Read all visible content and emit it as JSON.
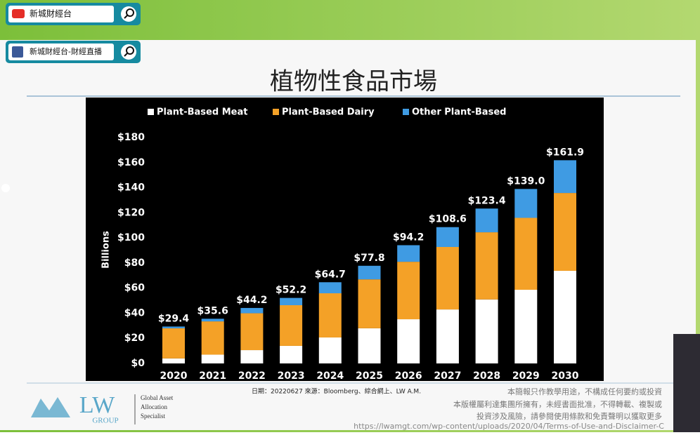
{
  "overlay": {
    "youtube": "新城財經台",
    "facebook": "新城財經台-財經直播"
  },
  "chart_data": {
    "type": "stacked_bar",
    "title": "植物性食品市場",
    "y_label": "Billions",
    "categories": [
      "2020",
      "2021",
      "2022",
      "2023",
      "2024",
      "2025",
      "2026",
      "2027",
      "2028",
      "2029",
      "2030"
    ],
    "series": [
      {
        "name": "Plant-Based Meat",
        "color": "#ffffff",
        "values": [
          4,
          7,
          10.6,
          14,
          20.7,
          28,
          35.2,
          43,
          51,
          58.7,
          73.8
        ]
      },
      {
        "name": "Plant-Based Dairy",
        "color": "#f4a127",
        "values": [
          24,
          26.5,
          29.4,
          32.4,
          35.2,
          39,
          45.8,
          49.8,
          53.5,
          57.3,
          62
        ]
      },
      {
        "name": "Other Plant-Based",
        "color": "#3f9be3",
        "values": [
          1.4,
          2.1,
          4.2,
          5.8,
          8.8,
          10.8,
          13.2,
          15.8,
          18.9,
          23,
          26.1
        ]
      }
    ],
    "totals": {
      "values": [
        29.4,
        35.6,
        44.2,
        52.2,
        64.7,
        77.8,
        94.2,
        108.6,
        123.4,
        139.0,
        161.9
      ],
      "value_labels": [
        "$29.4",
        "$35.6",
        "$44.2",
        "$52.2",
        "$64.7",
        "$77.8",
        "$94.2",
        "$108.6",
        "$123.4",
        "$139.0",
        "$161.9"
      ]
    },
    "ylim": [
      0,
      180
    ],
    "yticks": [
      {
        "value": 0,
        "label": "$0"
      },
      {
        "value": 20,
        "label": "$20"
      },
      {
        "value": 40,
        "label": "$40"
      },
      {
        "value": 60,
        "label": "$60"
      },
      {
        "value": 80,
        "label": "$80"
      },
      {
        "value": 100,
        "label": "$100"
      },
      {
        "value": 120,
        "label": "$120"
      },
      {
        "value": 140,
        "label": "$140"
      },
      {
        "value": 160,
        "label": "$160"
      },
      {
        "value": 180,
        "label": "$180"
      }
    ],
    "legend": "top"
  },
  "footer": {
    "logo": "LW",
    "logo_sub": "GROUP",
    "tagline": [
      "Global Asset",
      "Allocation",
      "Specialist"
    ],
    "source": "日期：20220627  來源：Bloomberg、綜合網上、LW A.M.",
    "disclaimer": [
      "本簡報只作教學用途，不構成任何要約或投資",
      "本版權屬利達集團所擁有，未經書面批准，不得轉載、複製或",
      "投資涉及風險，請參閱使用條款和免責聲明以獲取更多"
    ],
    "url": "https://lwamgt.com/wp-content/uploads/2020/04/Terms-of-Use-and-Disclaimer-C"
  }
}
